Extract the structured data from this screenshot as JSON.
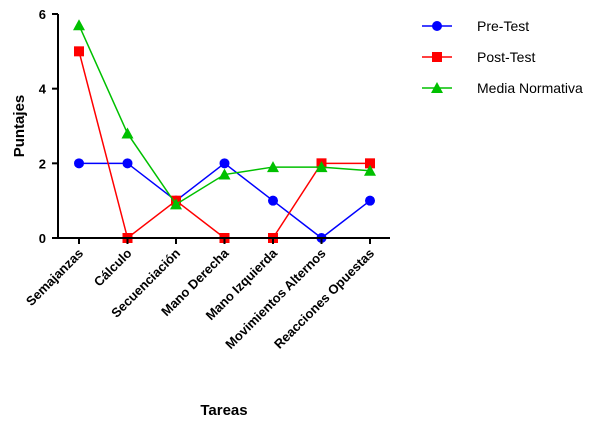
{
  "chart_data": {
    "type": "line",
    "title": "",
    "xlabel": "Tareas",
    "ylabel": "Puntajes",
    "categories": [
      "Semajanzas",
      "Cálculo",
      "Secuenciación",
      "Mano Derecha",
      "Mano Izquierda",
      "Movimientos Alternos",
      "Reacciones Opuestas"
    ],
    "ylim": [
      0,
      6
    ],
    "yticks": [
      0,
      2,
      4,
      6
    ],
    "grid": false,
    "legend": "right",
    "series": [
      {
        "name": "Pre-Test",
        "color": "#0000ff",
        "marker": "circle",
        "values": [
          2,
          2,
          1,
          2,
          1,
          0,
          1
        ]
      },
      {
        "name": "Post-Test",
        "color": "#ff0000",
        "marker": "square",
        "values": [
          5,
          0,
          1,
          0,
          0,
          2,
          2
        ]
      },
      {
        "name": "Media Normativa",
        "color": "#00c000",
        "marker": "triangle",
        "values": [
          5.7,
          2.8,
          0.9,
          1.7,
          1.9,
          1.9,
          1.8
        ]
      }
    ]
  }
}
